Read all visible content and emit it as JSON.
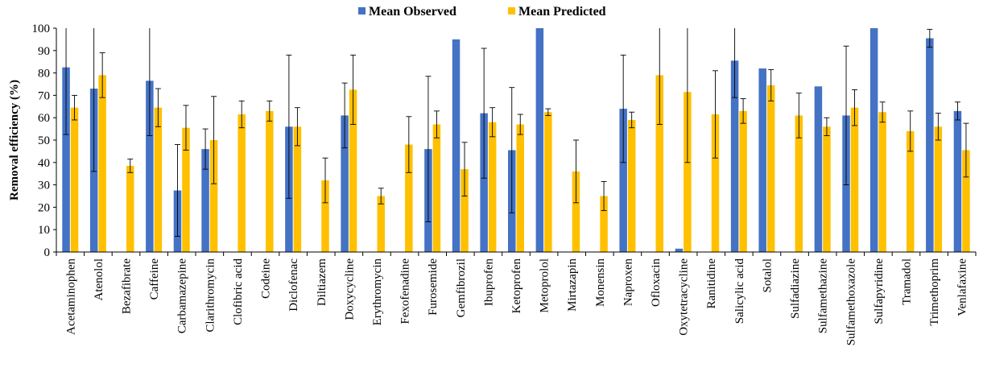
{
  "chart_data": {
    "type": "bar",
    "title": "",
    "xlabel": "",
    "ylabel": "Removal efficiency (%)",
    "ylim": [
      0,
      100
    ],
    "yticks": [
      0,
      10,
      20,
      30,
      40,
      50,
      60,
      70,
      80,
      90,
      100
    ],
    "grid": false,
    "legend_position": "top-center",
    "categories": [
      "Acetaminophen",
      "Atenolol",
      "Bezafibrate",
      "Caffeine",
      "Carbamazepine",
      "Clarithromycin",
      "Clofibric acid",
      "Codeine",
      "Diclofenac",
      "Diltiazem",
      "Doxycycline",
      "Erythromycin",
      "Fexofenadine",
      "Furosemide",
      "Gemfibrozil",
      "Ibuprofen",
      "Ketoprofen",
      "Metoprolol",
      "Mirtazapin",
      "Monensin",
      "Naproxen",
      "Ofloxacin",
      "Oxytetracycline",
      "Ranitidine",
      "Salicylic acid",
      "Sotalol",
      "Sulfadiazine",
      "Sulfamethazine",
      "Sulfamethoxazole",
      "Sulfapyridine",
      "Tramadol",
      "Trimethoprim",
      "Venlafaxine"
    ],
    "series": [
      {
        "name": "Mean Observed",
        "color": "#4472C4",
        "values": [
          82.5,
          73,
          null,
          76.5,
          27.5,
          46,
          null,
          null,
          56,
          null,
          61,
          null,
          null,
          46,
          95,
          62,
          45.5,
          100,
          null,
          null,
          64,
          null,
          1.5,
          null,
          85.5,
          82,
          null,
          74,
          61,
          100,
          null,
          95.5,
          63
        ],
        "error_low": [
          30,
          37,
          null,
          24.5,
          20.5,
          9,
          null,
          null,
          32,
          null,
          14.5,
          null,
          null,
          32.5,
          0,
          29,
          28,
          0,
          null,
          null,
          24,
          null,
          0,
          null,
          16.5,
          0,
          null,
          0,
          31,
          0,
          null,
          4,
          4
        ],
        "error_high": [
          30,
          37,
          null,
          24.5,
          20.5,
          9,
          null,
          null,
          32,
          null,
          14.5,
          null,
          null,
          32.5,
          0,
          29,
          28,
          0,
          null,
          null,
          24,
          null,
          0,
          null,
          16.5,
          0,
          null,
          0,
          31,
          0,
          null,
          4,
          4
        ]
      },
      {
        "name": "Mean Predicted",
        "color": "#FFC000",
        "values": [
          64.5,
          79,
          38.5,
          64.5,
          55.5,
          50,
          61.5,
          63,
          56,
          32,
          72.5,
          25,
          48,
          57,
          37,
          58,
          57,
          62.5,
          36,
          25,
          59,
          79,
          71.5,
          61.5,
          63,
          74.5,
          61,
          56,
          64.5,
          62.5,
          54,
          56,
          45.5
        ],
        "error_low": [
          5.5,
          10,
          3,
          8.5,
          10,
          19.5,
          6,
          4.5,
          8.5,
          10,
          15.5,
          3.5,
          12.5,
          6,
          12,
          6.5,
          4.5,
          1.5,
          14,
          6.5,
          3.5,
          22,
          31.5,
          19.5,
          5.5,
          7,
          10,
          4,
          8,
          4.5,
          9,
          6,
          12
        ],
        "error_high": [
          5.5,
          10,
          3,
          8.5,
          10,
          19.5,
          6,
          4.5,
          8.5,
          10,
          15.5,
          3.5,
          12.5,
          6,
          12,
          6.5,
          4.5,
          1.5,
          14,
          6.5,
          3.5,
          22,
          31.5,
          19.5,
          5.5,
          7,
          10,
          4,
          8,
          4.5,
          9,
          6,
          12
        ]
      }
    ]
  }
}
